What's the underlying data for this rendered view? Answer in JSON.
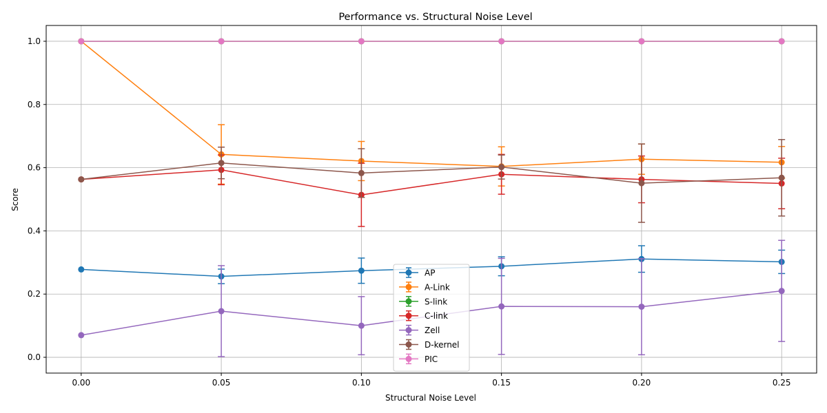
{
  "chart_data": {
    "type": "line",
    "title": "Performance vs. Structural Noise Level",
    "xlabel": "Structural Noise Level",
    "ylabel": "Score",
    "x": [
      0.0,
      0.05,
      0.1,
      0.15,
      0.2,
      0.25
    ],
    "x_tick_labels": [
      "0.00",
      "0.05",
      "0.10",
      "0.15",
      "0.20",
      "0.25"
    ],
    "y_tick_labels": [
      "0.0",
      "0.2",
      "0.4",
      "0.6",
      "0.8",
      "1.0"
    ],
    "y_ticks": [
      0.0,
      0.2,
      0.4,
      0.6,
      0.8,
      1.0
    ],
    "xlim": [
      -0.0125,
      0.2625
    ],
    "ylim": [
      -0.05,
      1.05
    ],
    "grid": true,
    "legend_position": "lower center",
    "error_bars": true,
    "series": [
      {
        "name": "AP",
        "color": "#1f77b4",
        "values": [
          0.278,
          0.256,
          0.274,
          0.288,
          0.311,
          0.302
        ],
        "errors": [
          0.0,
          0.023,
          0.04,
          0.03,
          0.042,
          0.037
        ]
      },
      {
        "name": "A-Link",
        "color": "#ff7f0e",
        "values": [
          1.0,
          0.642,
          0.621,
          0.604,
          0.627,
          0.617
        ],
        "errors": [
          0.0,
          0.094,
          0.062,
          0.062,
          0.048,
          0.05
        ]
      },
      {
        "name": "S-link",
        "color": "#2ca02c",
        "values": [
          1.0,
          1.0,
          1.0,
          1.0,
          1.0,
          1.0
        ],
        "errors": [
          0.0,
          0.0,
          0.0,
          0.0,
          0.0,
          0.0
        ]
      },
      {
        "name": "C-link",
        "color": "#d62728",
        "values": [
          0.563,
          0.593,
          0.514,
          0.579,
          0.563,
          0.55
        ],
        "errors": [
          0.0,
          0.047,
          0.1,
          0.063,
          0.074,
          0.08
        ]
      },
      {
        "name": "Zell",
        "color": "#9467bd",
        "values": [
          0.07,
          0.146,
          0.1,
          0.161,
          0.16,
          0.21
        ],
        "errors": [
          0.0,
          0.144,
          0.092,
          0.152,
          0.152,
          0.16
        ]
      },
      {
        "name": "D-kernel",
        "color": "#8c564b",
        "values": [
          0.563,
          0.615,
          0.583,
          0.602,
          0.551,
          0.568
        ],
        "errors": [
          0.0,
          0.05,
          0.077,
          0.038,
          0.124,
          0.121
        ]
      },
      {
        "name": "PIC",
        "color": "#e377c2",
        "values": [
          1.0,
          1.0,
          1.0,
          1.0,
          1.0,
          1.0
        ],
        "errors": [
          0.0,
          0.0,
          0.0,
          0.0,
          0.0,
          0.0
        ]
      }
    ]
  }
}
